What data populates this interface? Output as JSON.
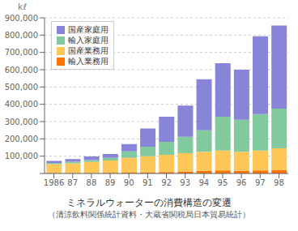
{
  "chart_data": {
    "type": "bar",
    "stacked": true,
    "title": "ミネラルウォーターの消費構造の変遷",
    "subtitle": "（清涼飲料関係統計資料・大蔵省関税局日本貿易統計）",
    "ylabel": "kℓ",
    "categories": [
      "1986",
      "87",
      "88",
      "89",
      "90",
      "91",
      "92",
      "93",
      "94",
      "95",
      "96",
      "97",
      "98"
    ],
    "series": [
      {
        "name": "輸入業務用",
        "color": "#ff7300",
        "values": [
          2000,
          1000,
          2000,
          3000,
          5000,
          5000,
          8000,
          12000,
          15000,
          18000,
          15000,
          18000,
          20000
        ]
      },
      {
        "name": "国産業務用",
        "color": "#ffc658",
        "values": [
          52000,
          58000,
          65000,
          72000,
          85000,
          95000,
          100000,
          105000,
          110000,
          115000,
          110000,
          115000,
          125000
        ]
      },
      {
        "name": "輸入家庭用",
        "color": "#82ca9d",
        "values": [
          7000,
          9000,
          10000,
          15000,
          38000,
          55000,
          75000,
          95000,
          125000,
          195000,
          185000,
          210000,
          230000
        ]
      },
      {
        "name": "国産家庭用",
        "color": "#8884d8",
        "values": [
          12000,
          15000,
          22000,
          22000,
          42000,
          105000,
          145000,
          180000,
          295000,
          310000,
          290000,
          450000,
          480000
        ]
      }
    ],
    "ylim": [
      0,
      900000
    ],
    "yticks": [
      {
        "value": 0,
        "label": ""
      },
      {
        "value": 100000,
        "label": "100,000"
      },
      {
        "value": 200000,
        "label": "200,000"
      },
      {
        "value": 300000,
        "label": "300,000"
      },
      {
        "value": 400000,
        "label": "400,000"
      },
      {
        "value": 500000,
        "label": "500,000"
      },
      {
        "value": 600000,
        "label": "600,000"
      },
      {
        "value": 700000,
        "label": "700,000"
      },
      {
        "value": 800000,
        "label": "800,000"
      },
      {
        "value": 900000,
        "label": "900,000"
      }
    ],
    "grid": true,
    "legend": "upper left"
  }
}
